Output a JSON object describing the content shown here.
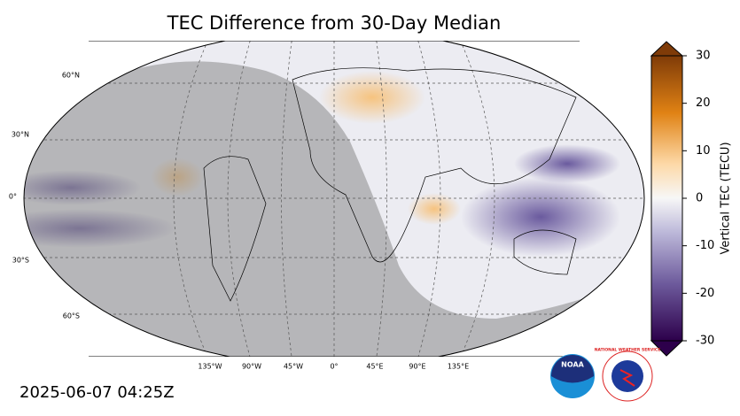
{
  "title": "TEC Difference from 30-Day Median",
  "lat_labels": [
    "60°N",
    "30°N",
    "0°",
    "30°S",
    "60°S"
  ],
  "lon_labels": [
    "135°W",
    "90°W",
    "45°W",
    "0°",
    "45°E",
    "90°E",
    "135°E"
  ],
  "colorbar": {
    "label": "Vertical TEC (TECU)",
    "lim": [
      -30,
      30
    ],
    "ticks": [
      -30,
      -20,
      -10,
      0,
      10,
      20,
      30
    ]
  },
  "timestamp": "2025-06-07 04:25Z",
  "logos": [
    "NOAA",
    "NATIONAL WEATHER SERVICE"
  ]
}
